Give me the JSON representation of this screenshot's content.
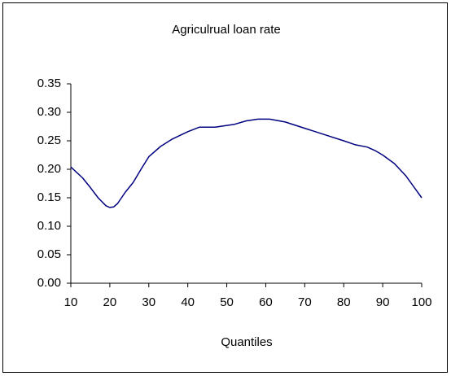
{
  "chart_data": {
    "type": "line",
    "title": "Agriculrual loan rate",
    "x_label": "Quantiles",
    "x": [
      10,
      13,
      15,
      17,
      19,
      20,
      21,
      22,
      24,
      26,
      28,
      30,
      33,
      36,
      40,
      43,
      47,
      52,
      55,
      58,
      61,
      65,
      70,
      75,
      80,
      83,
      86,
      88,
      90,
      93,
      96,
      100
    ],
    "values": [
      0.204,
      0.185,
      0.168,
      0.15,
      0.136,
      0.133,
      0.134,
      0.14,
      0.16,
      0.177,
      0.2,
      0.222,
      0.24,
      0.253,
      0.266,
      0.274,
      0.274,
      0.279,
      0.285,
      0.288,
      0.288,
      0.283,
      0.272,
      0.261,
      0.25,
      0.243,
      0.239,
      0.233,
      0.225,
      0.21,
      0.188,
      0.15
    ],
    "color": "#000080",
    "xlim": [
      10,
      100
    ],
    "xticks": [
      10,
      20,
      30,
      40,
      50,
      60,
      70,
      80,
      90,
      100
    ],
    "ylim": [
      0,
      0.35
    ],
    "yticks": [
      {
        "value": 0,
        "label": "0.00"
      },
      {
        "value": 0.05,
        "label": "0.05"
      },
      {
        "value": 0.1,
        "label": "0.10"
      },
      {
        "value": 0.15,
        "label": "0.15"
      },
      {
        "value": 0.2,
        "label": "0.20"
      },
      {
        "value": 0.25,
        "label": "0.25"
      },
      {
        "value": 0.3,
        "label": "0.30"
      },
      {
        "value": 0.35,
        "label": "0.35"
      }
    ],
    "grid": false
  }
}
